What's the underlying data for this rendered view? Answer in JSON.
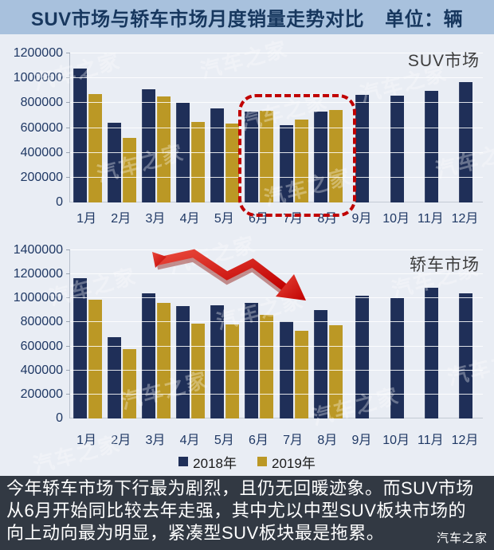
{
  "title": {
    "main": "SUV市场与轿车市场月度销量走势对比",
    "unit": "单位：辆"
  },
  "watermark_text": "汽车之家",
  "colors": {
    "year2018": "#1f2f58",
    "year2019": "#bb9825",
    "annotation_red": "#c00000",
    "title_bg": "#a8c1dd",
    "title_text": "#17375e",
    "footer_bg": "#323943",
    "page_bg": "#e9edf4"
  },
  "legend": [
    {
      "label": "2018年",
      "color": "#1f2f58"
    },
    {
      "label": "2019年",
      "color": "#bb9825"
    }
  ],
  "chart_data": [
    {
      "type": "bar",
      "title": "SUV市场",
      "categories": [
        "1月",
        "2月",
        "3月",
        "4月",
        "5月",
        "6月",
        "7月",
        "8月",
        "9月",
        "10月",
        "11月",
        "12月"
      ],
      "series": [
        {
          "name": "2018年",
          "color": "#1f2f58",
          "values": [
            1080000,
            640000,
            910000,
            800000,
            755000,
            730000,
            625000,
            730000,
            865000,
            860000,
            900000,
            970000
          ]
        },
        {
          "name": "2019年",
          "color": "#bb9825",
          "values": [
            870000,
            520000,
            855000,
            650000,
            635000,
            740000,
            665000,
            745000,
            null,
            null,
            null,
            null
          ]
        }
      ],
      "ylim": [
        0,
        1200000
      ],
      "ytick_step": 200000,
      "grid": true,
      "annotation": "red dashed rounded box highlighting 6月–8月 bars"
    },
    {
      "type": "bar",
      "title": "轿车市场",
      "categories": [
        "1月",
        "2月",
        "3月",
        "4月",
        "5月",
        "6月",
        "7月",
        "8月",
        "9月",
        "10月",
        "11月",
        "12月"
      ],
      "series": [
        {
          "name": "2018年",
          "color": "#1f2f58",
          "values": [
            1165000,
            680000,
            1040000,
            935000,
            945000,
            965000,
            810000,
            905000,
            1020000,
            1000000,
            1090000,
            1040000
          ]
        },
        {
          "name": "2019年",
          "color": "#bb9825",
          "values": [
            990000,
            580000,
            960000,
            790000,
            780000,
            860000,
            730000,
            775000,
            null,
            null,
            null,
            null
          ]
        }
      ],
      "ylim": [
        0,
        1400000
      ],
      "ytick_step": 200000,
      "grid": true,
      "annotation": "red 3D zigzag arrow trending down toward 7月"
    }
  ],
  "footer": {
    "lines": [
      "今年轿车市场下行最为剧烈，且仍无回暖迹象。而SUV市场",
      "从6月开始同比较去年走强，其中尤以中型SUV板块市场的",
      "向上动向最为明显，紧凑型SUV板块最是拖累。"
    ],
    "brand": "汽车之家"
  }
}
